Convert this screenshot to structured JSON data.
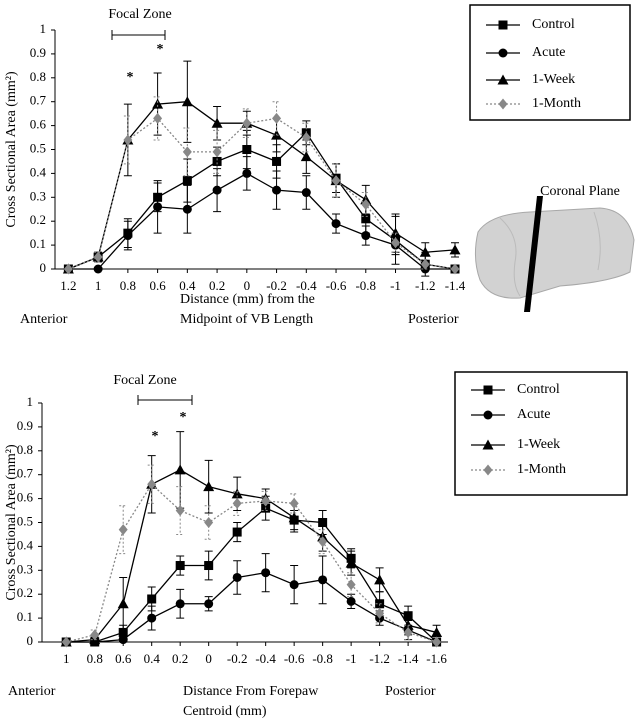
{
  "chart_data": [
    {
      "type": "line",
      "y_label": "Cross Sectional Area (mm²)",
      "x_label_lines": [
        "Distance (mm) from the",
        "Midpoint of VB Length"
      ],
      "annotations": [
        "Focal Zone",
        "*",
        "*",
        "Anterior",
        "Posterior"
      ],
      "x": [
        1.2,
        1,
        0.8,
        0.6,
        0.4,
        0.2,
        0,
        -0.2,
        -0.4,
        -0.6,
        -0.8,
        -1,
        -1.2,
        -1.4
      ],
      "xlim": [
        1.29,
        -1.4
      ],
      "xticks": [
        1.2,
        1,
        0.8,
        0.6,
        0.4,
        0.2,
        0,
        -0.2,
        -0.4,
        -0.6,
        -0.8,
        -1,
        -1.2,
        -1.4
      ],
      "ylim": [
        0,
        1
      ],
      "yticks": [
        0,
        0.1,
        0.2,
        0.3,
        0.4,
        0.5,
        0.6,
        0.7,
        0.8,
        0.9,
        1
      ],
      "series": [
        {
          "name": "Control",
          "color": "#000000",
          "marker": "square",
          "values": [
            0,
            0.05,
            0.15,
            0.3,
            0.37,
            0.45,
            0.5,
            0.45,
            0.57,
            0.38,
            0.21,
            0.12,
            0.02,
            0
          ],
          "errors": [
            0,
            0.02,
            0.06,
            0.06,
            0.09,
            0.06,
            0.08,
            0.07,
            0.05,
            0.06,
            0.06,
            0.1,
            0.05,
            0
          ]
        },
        {
          "name": "Acute",
          "color": "#000000",
          "marker": "circle",
          "values": [
            0,
            0,
            0.14,
            0.26,
            0.25,
            0.33,
            0.4,
            0.33,
            0.32,
            0.19,
            0.14,
            0.1,
            0,
            0
          ],
          "errors": [
            0,
            0,
            0.06,
            0.11,
            0.1,
            0.09,
            0.07,
            0.08,
            0.07,
            0.04,
            0.04,
            0.04,
            0,
            0
          ]
        },
        {
          "name": "1-Week",
          "color": "#000000",
          "marker": "triangle",
          "values": [
            0,
            0.05,
            0.54,
            0.69,
            0.7,
            0.61,
            0.61,
            0.56,
            0.47,
            0.37,
            0.29,
            0.15,
            0.07,
            0.08
          ],
          "errors": [
            0,
            0.02,
            0.15,
            0.13,
            0.17,
            0.07,
            0.05,
            0.07,
            0.07,
            0.07,
            0.06,
            0.08,
            0.04,
            0.03
          ]
        },
        {
          "name": "1-Month",
          "color": "#888888",
          "marker": "diamond",
          "dotted": true,
          "values": [
            0,
            0.05,
            0.54,
            0.63,
            0.49,
            0.49,
            0.61,
            0.63,
            0.55,
            0.37,
            0.27,
            0.11,
            0.02,
            0
          ],
          "errors": [
            0,
            0.02,
            0.1,
            0.09,
            0.1,
            0.09,
            0.06,
            0.07,
            0.06,
            0.07,
            0.05,
            0.04,
            0.02,
            0
          ]
        }
      ]
    },
    {
      "type": "line",
      "y_label": "Cross Sectional Area (mm²)",
      "x_label_lines": [
        "Distance From Forepaw",
        "Centroid (mm)"
      ],
      "annotations": [
        "Focal Zone",
        "*",
        "*",
        "Anterior",
        "Posterior"
      ],
      "x": [
        1,
        0.8,
        0.6,
        0.4,
        0.2,
        0,
        -0.2,
        -0.4,
        -0.6,
        -0.8,
        -1,
        -1.2,
        -1.4,
        -1.6
      ],
      "xlim": [
        1.17,
        -1.68
      ],
      "xticks": [
        1,
        0.8,
        0.6,
        0.4,
        0.2,
        0,
        -0.2,
        -0.4,
        -0.6,
        -0.8,
        -1,
        -1.2,
        -1.4,
        -1.6
      ],
      "ylim": [
        0,
        1
      ],
      "yticks": [
        0,
        0.1,
        0.2,
        0.3,
        0.4,
        0.5,
        0.6,
        0.7,
        0.8,
        0.9,
        1
      ],
      "series": [
        {
          "name": "Control",
          "color": "#000000",
          "marker": "square",
          "values": [
            0,
            0,
            0.04,
            0.18,
            0.32,
            0.32,
            0.46,
            0.56,
            0.51,
            0.5,
            0.35,
            0.16,
            0.11,
            0
          ],
          "errors": [
            0,
            0,
            0.03,
            0.05,
            0.04,
            0.06,
            0.04,
            0.05,
            0.04,
            0.05,
            0.04,
            0.05,
            0.04,
            0
          ]
        },
        {
          "name": "Acute",
          "color": "#000000",
          "marker": "circle",
          "values": [
            0,
            0,
            0.01,
            0.1,
            0.16,
            0.16,
            0.27,
            0.29,
            0.24,
            0.26,
            0.17,
            0.1,
            0.05,
            0
          ],
          "errors": [
            0,
            0,
            0.01,
            0.05,
            0.06,
            0.03,
            0.07,
            0.08,
            0.08,
            0.1,
            0.03,
            0.03,
            0.04,
            0
          ]
        },
        {
          "name": "1-Week",
          "color": "#000000",
          "marker": "triangle",
          "values": [
            0,
            0.01,
            0.16,
            0.66,
            0.72,
            0.65,
            0.62,
            0.6,
            0.52,
            0.44,
            0.33,
            0.26,
            0.07,
            0.04
          ],
          "errors": [
            0,
            0.01,
            0.11,
            0.12,
            0.16,
            0.11,
            0.07,
            0.04,
            0.06,
            0.06,
            0.05,
            0.05,
            0.04,
            0.03
          ]
        },
        {
          "name": "1-Month",
          "color": "#888888",
          "marker": "diamond",
          "dotted": true,
          "values": [
            0,
            0.03,
            0.47,
            0.66,
            0.55,
            0.5,
            0.58,
            0.59,
            0.58,
            0.42,
            0.24,
            0.12,
            0.04,
            0
          ],
          "errors": [
            0,
            0.02,
            0.1,
            0.08,
            0.1,
            0.07,
            0.05,
            0.04,
            0.04,
            0.05,
            0.05,
            0.04,
            0.03,
            0
          ]
        }
      ]
    }
  ],
  "inset_label": "Coronal Plane"
}
